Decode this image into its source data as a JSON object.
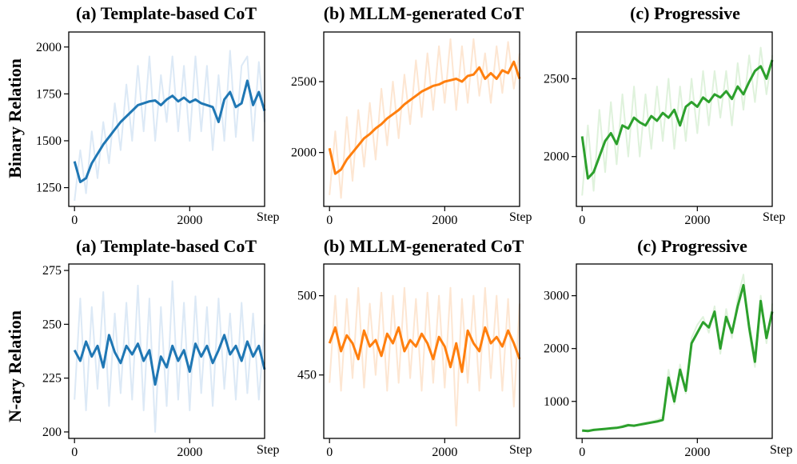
{
  "figure": {
    "row_labels": [
      "Binary Relation",
      "N-ary Relation"
    ]
  },
  "chart_data": [
    {
      "type": "line",
      "title": "(a) Template-based CoT",
      "row": "Binary Relation",
      "xlabel": "Step",
      "ylabel": "",
      "xlim": [
        -100,
        3300
      ],
      "ylim": [
        1150,
        2080
      ],
      "xticks": [
        0,
        2000
      ],
      "yticks": [
        1250,
        1500,
        1750,
        2000
      ],
      "color": "#1f77b4",
      "raw_color": "#dce9f6",
      "x_range": [
        0,
        3300
      ],
      "series": [
        {
          "kind": "smoothed",
          "x": [
            0,
            100,
            200,
            300,
            400,
            500,
            600,
            700,
            800,
            900,
            1000,
            1100,
            1200,
            1300,
            1400,
            1500,
            1600,
            1700,
            1800,
            1900,
            2000,
            2100,
            2200,
            2300,
            2400,
            2500,
            2600,
            2700,
            2800,
            2900,
            3000,
            3100,
            3200,
            3300
          ],
          "y": [
            1390,
            1280,
            1300,
            1380,
            1430,
            1480,
            1520,
            1560,
            1600,
            1630,
            1660,
            1690,
            1700,
            1710,
            1715,
            1690,
            1720,
            1740,
            1710,
            1730,
            1705,
            1720,
            1700,
            1690,
            1680,
            1600,
            1720,
            1760,
            1680,
            1700,
            1820,
            1690,
            1760,
            1660
          ]
        },
        {
          "kind": "raw",
          "x": [
            0,
            100,
            200,
            300,
            400,
            500,
            600,
            700,
            800,
            900,
            1000,
            1100,
            1200,
            1300,
            1400,
            1500,
            1600,
            1700,
            1800,
            1900,
            2000,
            2100,
            2200,
            2300,
            2400,
            2500,
            2600,
            2700,
            2800,
            2900,
            3000,
            3100,
            3200,
            3300
          ],
          "y": [
            1180,
            1450,
            1220,
            1550,
            1300,
            1600,
            1380,
            1700,
            1450,
            1800,
            1500,
            1900,
            1550,
            1950,
            1500,
            1850,
            1600,
            1950,
            1550,
            1900,
            1500,
            1950,
            1550,
            1900,
            1450,
            1850,
            1500,
            1980,
            1520,
            1900,
            1950,
            1500,
            1920,
            1600
          ]
        }
      ]
    },
    {
      "type": "line",
      "title": "(b) MLLM-generated CoT",
      "row": "Binary Relation",
      "xlabel": "Step",
      "ylabel": "",
      "xlim": [
        -100,
        3300
      ],
      "ylim": [
        1620,
        2850
      ],
      "xticks": [
        0,
        2000
      ],
      "yticks": [
        2000,
        2500
      ],
      "color": "#ff7f0e",
      "raw_color": "#fde6d2",
      "x_range": [
        0,
        3300
      ],
      "series": [
        {
          "kind": "smoothed",
          "x": [
            0,
            100,
            200,
            300,
            400,
            500,
            600,
            700,
            800,
            900,
            1000,
            1100,
            1200,
            1300,
            1400,
            1500,
            1600,
            1700,
            1800,
            1900,
            2000,
            2100,
            2200,
            2300,
            2400,
            2500,
            2600,
            2700,
            2800,
            2900,
            3000,
            3100,
            3200,
            3300
          ],
          "y": [
            2030,
            1850,
            1880,
            1950,
            2000,
            2050,
            2100,
            2130,
            2170,
            2200,
            2240,
            2270,
            2300,
            2340,
            2370,
            2400,
            2430,
            2450,
            2470,
            2480,
            2500,
            2510,
            2520,
            2500,
            2540,
            2550,
            2600,
            2520,
            2560,
            2520,
            2580,
            2560,
            2640,
            2520
          ]
        },
        {
          "kind": "raw",
          "x": [
            0,
            100,
            200,
            300,
            400,
            500,
            600,
            700,
            800,
            900,
            1000,
            1100,
            1200,
            1300,
            1400,
            1500,
            1600,
            1700,
            1800,
            1900,
            2000,
            2100,
            2200,
            2300,
            2400,
            2500,
            2600,
            2700,
            2800,
            2900,
            3000,
            3100,
            3200,
            3300
          ],
          "y": [
            1700,
            2150,
            1680,
            2250,
            1800,
            2300,
            1900,
            2350,
            1950,
            2450,
            2050,
            2500,
            2100,
            2550,
            2200,
            2650,
            2250,
            2700,
            2300,
            2750,
            2350,
            2800,
            2300,
            2750,
            2350,
            2800,
            2400,
            2700,
            2350,
            2750,
            2420,
            2780,
            2450,
            2700
          ]
        }
      ]
    },
    {
      "type": "line",
      "title": "(c) Progressive",
      "row": "Binary Relation",
      "xlabel": "Step",
      "ylabel": "",
      "xlim": [
        -100,
        3300
      ],
      "ylim": [
        1680,
        2800
      ],
      "xticks": [
        0,
        2000
      ],
      "yticks": [
        2000,
        2500
      ],
      "color": "#2ca02c",
      "raw_color": "#dff2dc",
      "x_range": [
        0,
        3300
      ],
      "series": [
        {
          "kind": "smoothed",
          "x": [
            0,
            100,
            200,
            300,
            400,
            500,
            600,
            700,
            800,
            900,
            1000,
            1100,
            1200,
            1300,
            1400,
            1500,
            1600,
            1700,
            1800,
            1900,
            2000,
            2100,
            2200,
            2300,
            2400,
            2500,
            2600,
            2700,
            2800,
            2900,
            3000,
            3100,
            3200,
            3300
          ],
          "y": [
            2130,
            1860,
            1900,
            2000,
            2100,
            2150,
            2080,
            2200,
            2180,
            2250,
            2220,
            2200,
            2260,
            2230,
            2280,
            2250,
            2300,
            2200,
            2320,
            2350,
            2320,
            2380,
            2350,
            2400,
            2380,
            2420,
            2370,
            2450,
            2400,
            2480,
            2550,
            2580,
            2500,
            2620
          ]
        },
        {
          "kind": "raw",
          "x": [
            0,
            100,
            200,
            300,
            400,
            500,
            600,
            700,
            800,
            900,
            1000,
            1100,
            1200,
            1300,
            1400,
            1500,
            1600,
            1700,
            1800,
            1900,
            2000,
            2100,
            2200,
            2300,
            2400,
            2500,
            2600,
            2700,
            2800,
            2900,
            3000,
            3100,
            3200,
            3300
          ],
          "y": [
            1750,
            2200,
            1780,
            2300,
            1900,
            2350,
            1950,
            2400,
            2000,
            2450,
            2000,
            2400,
            2050,
            2450,
            2100,
            2500,
            2050,
            2450,
            2100,
            2500,
            2150,
            2550,
            2200,
            2550,
            2250,
            2550,
            2200,
            2600,
            2300,
            2650,
            2350,
            2700,
            2400,
            2650
          ]
        }
      ]
    },
    {
      "type": "line",
      "title": "(a) Template-based CoT",
      "row": "N-ary Relation",
      "xlabel": "Step",
      "ylabel": "",
      "xlim": [
        -100,
        3300
      ],
      "ylim": [
        197,
        278
      ],
      "xticks": [
        0,
        2000
      ],
      "yticks": [
        200,
        225,
        250,
        275
      ],
      "color": "#1f77b4",
      "raw_color": "#dce9f6",
      "x_range": [
        0,
        3300
      ],
      "series": [
        {
          "kind": "smoothed",
          "x": [
            0,
            100,
            200,
            300,
            400,
            500,
            600,
            700,
            800,
            900,
            1000,
            1100,
            1200,
            1300,
            1400,
            1500,
            1600,
            1700,
            1800,
            1900,
            2000,
            2100,
            2200,
            2300,
            2400,
            2500,
            2600,
            2700,
            2800,
            2900,
            3000,
            3100,
            3200,
            3300
          ],
          "y": [
            238,
            233,
            242,
            235,
            240,
            230,
            245,
            237,
            232,
            240,
            236,
            241,
            233,
            238,
            222,
            235,
            230,
            240,
            233,
            238,
            228,
            241,
            235,
            240,
            232,
            238,
            245,
            236,
            240,
            233,
            242,
            235,
            240,
            229
          ]
        },
        {
          "kind": "raw",
          "x": [
            0,
            100,
            200,
            300,
            400,
            500,
            600,
            700,
            800,
            900,
            1000,
            1100,
            1200,
            1300,
            1400,
            1500,
            1600,
            1700,
            1800,
            1900,
            2000,
            2100,
            2200,
            2300,
            2400,
            2500,
            2600,
            2700,
            2800,
            2900,
            3000,
            3100,
            3200,
            3300
          ],
          "y": [
            215,
            262,
            210,
            258,
            220,
            265,
            212,
            255,
            218,
            260,
            215,
            268,
            210,
            262,
            200,
            258,
            212,
            270,
            215,
            260,
            210,
            263,
            218,
            258,
            212,
            262,
            220,
            255,
            215,
            260,
            218,
            255,
            215,
            250
          ]
        }
      ]
    },
    {
      "type": "line",
      "title": "(b) MLLM-generated CoT",
      "row": "N-ary Relation",
      "xlabel": "Step",
      "ylabel": "",
      "xlim": [
        -100,
        3300
      ],
      "ylim": [
        410,
        520
      ],
      "xticks": [
        0,
        2000
      ],
      "yticks": [
        450,
        500
      ],
      "color": "#ff7f0e",
      "raw_color": "#fde6d2",
      "x_range": [
        0,
        3300
      ],
      "series": [
        {
          "kind": "smoothed",
          "x": [
            0,
            100,
            200,
            300,
            400,
            500,
            600,
            700,
            800,
            900,
            1000,
            1100,
            1200,
            1300,
            1400,
            1500,
            1600,
            1700,
            1800,
            1900,
            2000,
            2100,
            2200,
            2300,
            2400,
            2500,
            2600,
            2700,
            2800,
            2900,
            3000,
            3100,
            3200,
            3300
          ],
          "y": [
            470,
            480,
            465,
            475,
            470,
            460,
            478,
            468,
            472,
            462,
            476,
            470,
            480,
            465,
            472,
            468,
            476,
            470,
            460,
            474,
            468,
            455,
            470,
            452,
            478,
            470,
            465,
            480,
            470,
            474,
            468,
            478,
            470,
            460
          ]
        },
        {
          "kind": "raw",
          "x": [
            0,
            100,
            200,
            300,
            400,
            500,
            600,
            700,
            800,
            900,
            1000,
            1100,
            1200,
            1300,
            1400,
            1500,
            1600,
            1700,
            1800,
            1900,
            2000,
            2100,
            2200,
            2300,
            2400,
            2500,
            2600,
            2700,
            2800,
            2900,
            3000,
            3100,
            3200,
            3300
          ],
          "y": [
            445,
            500,
            440,
            498,
            448,
            505,
            442,
            495,
            450,
            502,
            440,
            500,
            445,
            505,
            448,
            498,
            440,
            502,
            445,
            500,
            442,
            505,
            418,
            498,
            445,
            500,
            440,
            505,
            448,
            500,
            440,
            498,
            430,
            495
          ]
        }
      ]
    },
    {
      "type": "line",
      "title": "(c) Progressive",
      "row": "N-ary Relation",
      "xlabel": "Step",
      "ylabel": "",
      "xlim": [
        -100,
        3300
      ],
      "ylim": [
        300,
        3600
      ],
      "xticks": [
        0,
        2000
      ],
      "yticks": [
        1000,
        2000,
        3000
      ],
      "color": "#2ca02c",
      "raw_color": "#dff2dc",
      "x_range": [
        0,
        3300
      ],
      "series": [
        {
          "kind": "smoothed",
          "x": [
            0,
            100,
            200,
            300,
            400,
            500,
            600,
            700,
            800,
            900,
            1000,
            1100,
            1200,
            1300,
            1400,
            1500,
            1600,
            1700,
            1800,
            1900,
            2000,
            2100,
            2200,
            2300,
            2400,
            2500,
            2600,
            2700,
            2800,
            2900,
            3000,
            3100,
            3200,
            3300
          ],
          "y": [
            450,
            440,
            460,
            470,
            480,
            490,
            500,
            520,
            550,
            540,
            560,
            580,
            600,
            620,
            650,
            1450,
            1000,
            1600,
            1200,
            2100,
            2300,
            2500,
            2400,
            2700,
            2000,
            2600,
            2300,
            2800,
            3200,
            2400,
            1750,
            2900,
            2200,
            2700
          ]
        },
        {
          "kind": "raw",
          "x": [
            0,
            100,
            200,
            300,
            400,
            500,
            600,
            700,
            800,
            900,
            1000,
            1100,
            1200,
            1300,
            1400,
            1500,
            1600,
            1700,
            1800,
            1900,
            2000,
            2100,
            2200,
            2300,
            2400,
            2500,
            2600,
            2700,
            2800,
            2900,
            3000,
            3100,
            3200,
            3300
          ],
          "y": [
            430,
            460,
            450,
            480,
            470,
            500,
            490,
            540,
            570,
            530,
            580,
            600,
            620,
            650,
            700,
            1600,
            950,
            1700,
            1150,
            2200,
            2450,
            2600,
            2300,
            2800,
            1900,
            2750,
            2200,
            2950,
            3400,
            2300,
            1650,
            3000,
            2100,
            2850
          ]
        }
      ]
    }
  ]
}
